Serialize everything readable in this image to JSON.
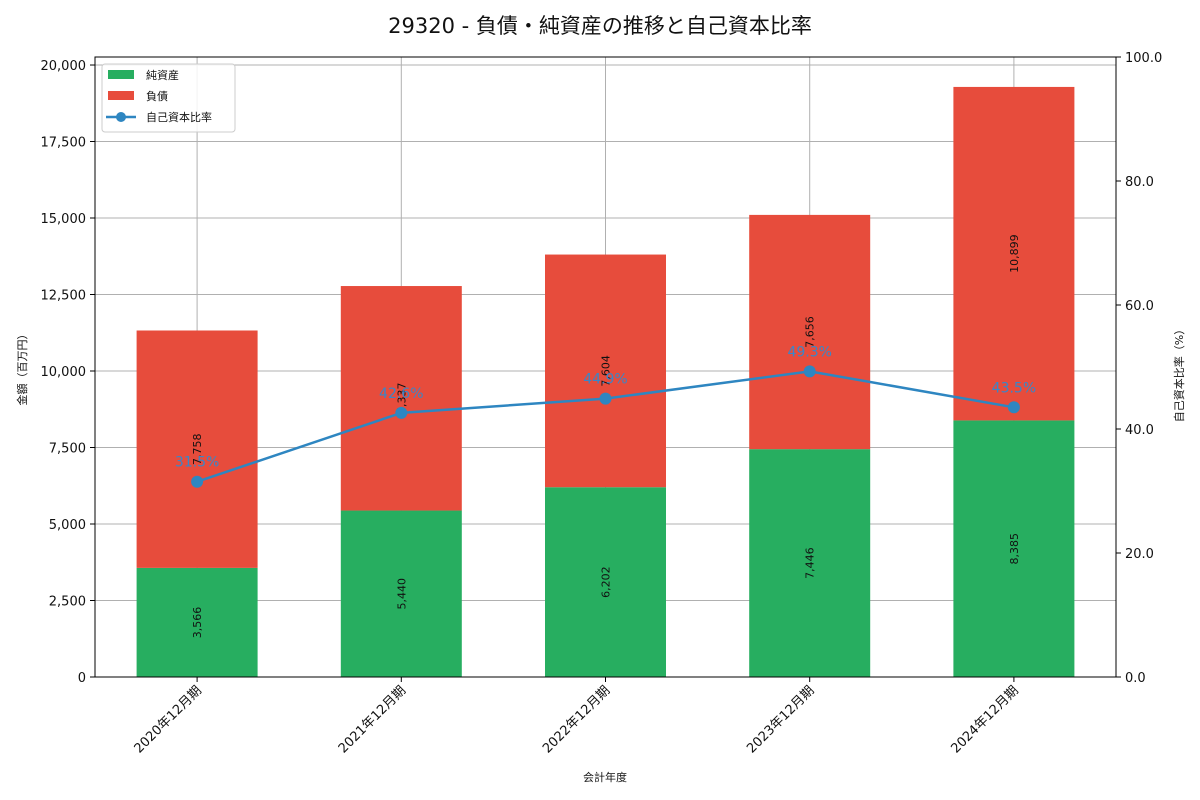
{
  "title": "29320 - 負債・純資産の推移と自己資本比率",
  "chart_data": {
    "type": "bar",
    "stacked": true,
    "title": "29320 - 負債・純資産の推移と自己資本比率",
    "xlabel": "会計年度",
    "ylabel": "金額（百万円）",
    "y2label": "自己資本比率（%）",
    "categories": [
      "2020年12月期",
      "2021年12月期",
      "2022年12月期",
      "2023年12月期",
      "2024年12月期"
    ],
    "series": [
      {
        "name": "純資産",
        "type": "bar",
        "color": "#27ae60",
        "values": [
          3566,
          5440,
          6202,
          7446,
          8385
        ]
      },
      {
        "name": "負債",
        "type": "bar",
        "color": "#e74c3c",
        "values": [
          7758,
          7337,
          7604,
          7656,
          10899
        ]
      },
      {
        "name": "自己資本比率",
        "type": "line",
        "axis": "right",
        "color": "#2e86c1",
        "values": [
          31.5,
          42.6,
          44.9,
          49.3,
          43.5
        ]
      }
    ],
    "ylim": [
      0,
      20262
    ],
    "yticks": [
      "0",
      "2,500",
      "5,000",
      "7,500",
      "10,000",
      "12,500",
      "15,000",
      "17,500",
      "20,000"
    ],
    "y2lim": [
      0,
      100
    ],
    "y2ticks": [
      "0.0",
      "20.0",
      "40.0",
      "60.0",
      "80.0",
      "100.0"
    ],
    "legend_position": "upper left",
    "grid": true
  }
}
